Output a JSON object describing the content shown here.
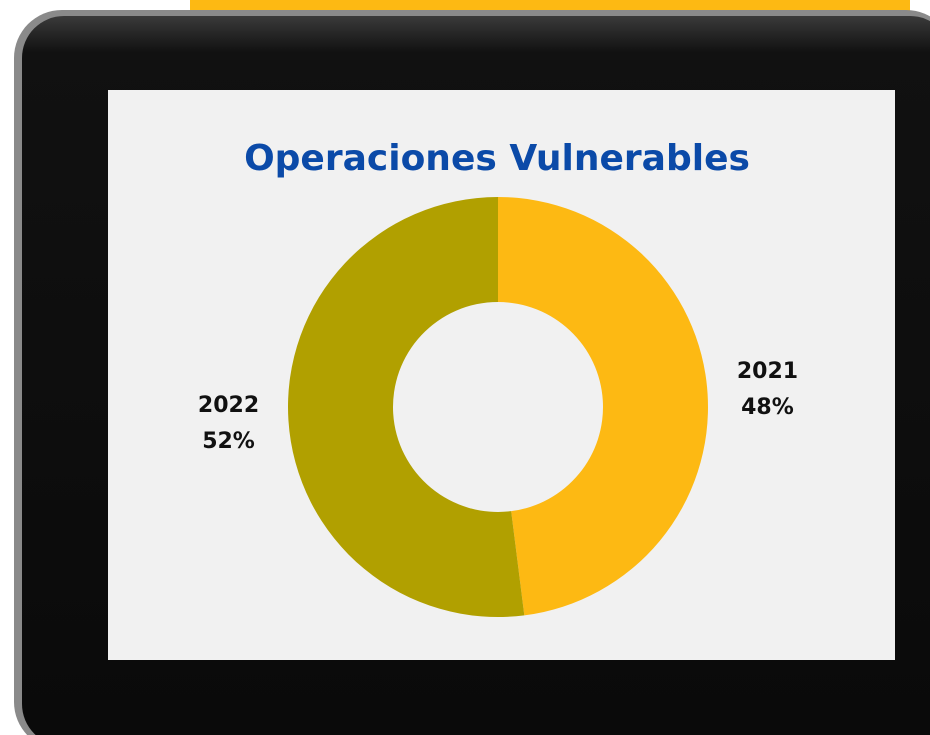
{
  "chart_data": {
    "type": "donut",
    "title": "Operaciones Vulnerables",
    "categories": [
      "2021",
      "2022"
    ],
    "values": [
      48,
      52
    ],
    "value_labels": [
      "48%",
      "52%"
    ],
    "colors": [
      "#fdb913",
      "#b1a000"
    ]
  }
}
